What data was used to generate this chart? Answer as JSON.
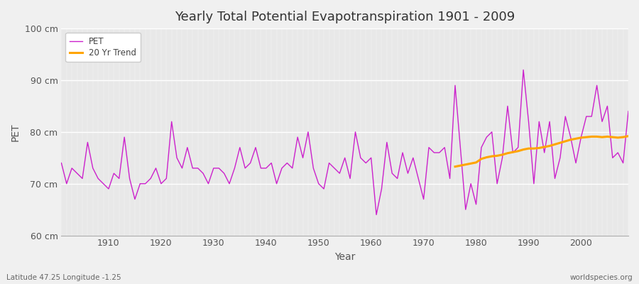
{
  "title": "Yearly Total Potential Evapotranspiration 1901 - 2009",
  "xlabel": "Year",
  "ylabel": "PET",
  "footnote_left": "Latitude 47.25 Longitude -1.25",
  "footnote_right": "worldspecies.org",
  "ylim": [
    60,
    100
  ],
  "yticks": [
    60,
    70,
    80,
    90,
    100
  ],
  "ytick_labels": [
    "60 cm",
    "70 cm",
    "80 cm",
    "90 cm",
    "100 cm"
  ],
  "pet_color": "#cc22cc",
  "trend_color": "#FFA500",
  "fig_bg_color": "#f0f0f0",
  "plot_bg_color": "#e8e8e8",
  "pet_label": "PET",
  "trend_label": "20 Yr Trend",
  "years": [
    1901,
    1902,
    1903,
    1904,
    1905,
    1906,
    1907,
    1908,
    1909,
    1910,
    1911,
    1912,
    1913,
    1914,
    1915,
    1916,
    1917,
    1918,
    1919,
    1920,
    1921,
    1922,
    1923,
    1924,
    1925,
    1926,
    1927,
    1928,
    1929,
    1930,
    1931,
    1932,
    1933,
    1934,
    1935,
    1936,
    1937,
    1938,
    1939,
    1940,
    1941,
    1942,
    1943,
    1944,
    1945,
    1946,
    1947,
    1948,
    1949,
    1950,
    1951,
    1952,
    1953,
    1954,
    1955,
    1956,
    1957,
    1958,
    1959,
    1960,
    1961,
    1962,
    1963,
    1964,
    1965,
    1966,
    1967,
    1968,
    1969,
    1970,
    1971,
    1972,
    1973,
    1974,
    1975,
    1976,
    1977,
    1978,
    1979,
    1980,
    1981,
    1982,
    1983,
    1984,
    1985,
    1986,
    1987,
    1988,
    1989,
    1990,
    1991,
    1992,
    1993,
    1994,
    1995,
    1996,
    1997,
    1998,
    1999,
    2000,
    2001,
    2002,
    2003,
    2004,
    2005,
    2006,
    2007,
    2008,
    2009
  ],
  "pet_values": [
    74.0,
    70.0,
    73.0,
    72.0,
    71.0,
    78.0,
    73.0,
    71.0,
    70.0,
    69.0,
    72.0,
    71.0,
    79.0,
    71.0,
    67.0,
    70.0,
    70.0,
    71.0,
    73.0,
    70.0,
    71.0,
    82.0,
    75.0,
    73.0,
    77.0,
    73.0,
    73.0,
    72.0,
    70.0,
    73.0,
    73.0,
    72.0,
    70.0,
    73.0,
    77.0,
    73.0,
    74.0,
    77.0,
    73.0,
    73.0,
    74.0,
    70.0,
    73.0,
    74.0,
    73.0,
    79.0,
    75.0,
    80.0,
    73.0,
    70.0,
    69.0,
    74.0,
    73.0,
    72.0,
    75.0,
    71.0,
    80.0,
    75.0,
    74.0,
    75.0,
    64.0,
    69.0,
    78.0,
    72.0,
    71.0,
    76.0,
    72.0,
    75.0,
    71.0,
    67.0,
    77.0,
    76.0,
    76.0,
    77.0,
    71.0,
    89.0,
    77.0,
    65.0,
    70.0,
    66.0,
    77.0,
    79.0,
    80.0,
    70.0,
    75.0,
    85.0,
    76.0,
    77.0,
    92.0,
    82.0,
    70.0,
    82.0,
    76.0,
    82.0,
    71.0,
    75.0,
    83.0,
    79.0,
    74.0,
    79.0,
    83.0,
    83.0,
    89.0,
    82.0,
    85.0,
    75.0,
    76.0,
    74.0,
    84.0
  ],
  "trend_years": [
    1976,
    1977,
    1978,
    1979,
    1980,
    1981,
    1982,
    1983,
    1984,
    1985,
    1986,
    1987,
    1988,
    1989,
    1990,
    1991,
    1992,
    1993,
    1994,
    1995,
    1996,
    1997,
    1998,
    1999,
    2000,
    2001,
    2002,
    2003,
    2004,
    2005,
    2006,
    2007,
    2008,
    2009
  ],
  "trend_values": [
    73.3,
    73.5,
    73.7,
    73.9,
    74.1,
    74.8,
    75.1,
    75.3,
    75.4,
    75.6,
    75.9,
    76.1,
    76.3,
    76.6,
    76.8,
    76.8,
    76.9,
    77.1,
    77.3,
    77.6,
    77.9,
    78.2,
    78.5,
    78.7,
    78.9,
    79.0,
    79.1,
    79.1,
    79.0,
    79.1,
    79.0,
    78.9,
    79.0,
    79.2
  ],
  "xticks": [
    1910,
    1920,
    1930,
    1940,
    1950,
    1960,
    1970,
    1980,
    1990,
    2000
  ]
}
